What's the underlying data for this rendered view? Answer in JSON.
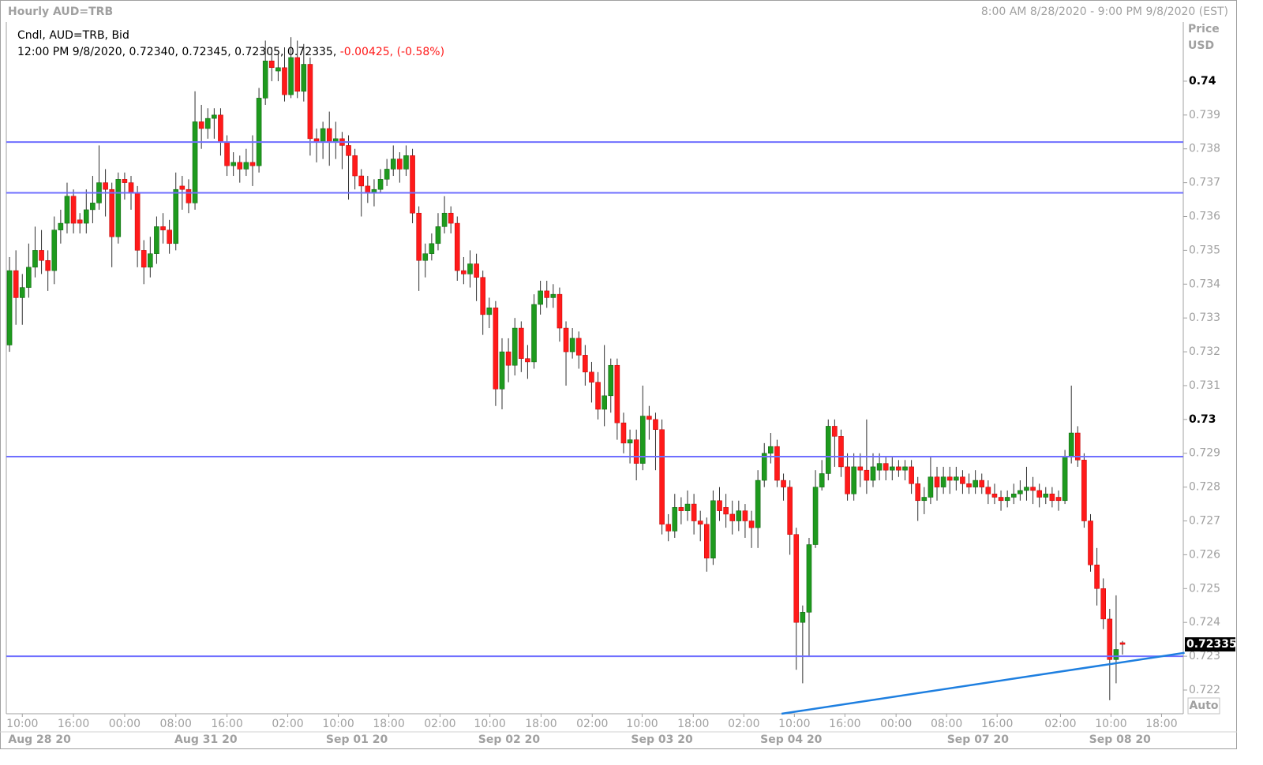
{
  "chart_data": {
    "type": "candlestick",
    "title": "Hourly AUD=TRB",
    "subtitle": "8:00 AM 8/28/2020 - 9:00 PM 9/8/2020 (EST)",
    "legend_title": "Cndl, AUD=TRB, Bid",
    "info_line": "12:00 PM 9/8/2020, 0.72340, 0.72345, 0.72305, 0.72335,",
    "info_change": "-0.00425, (-0.58%)",
    "y_axis_label": [
      "Price",
      "USD"
    ],
    "auto_button": "Auto",
    "up_color": "#1e9a1e",
    "down_color": "#ff1a1a",
    "line_color": "#6f6fff",
    "trend_color": "#1e7fe0",
    "xlim": [
      -0.5,
      183.5
    ],
    "ylim": [
      0.7213,
      0.7424
    ],
    "yticks": [
      0.74,
      0.739,
      0.738,
      0.737,
      0.736,
      0.735,
      0.734,
      0.733,
      0.732,
      0.731,
      0.73,
      0.729,
      0.728,
      0.727,
      0.726,
      0.725,
      0.724,
      0.723,
      0.722
    ],
    "bold_yticks": [
      0.74,
      0.73
    ],
    "xticks": [
      {
        "value": 2,
        "label": "10:00"
      },
      {
        "value": 10,
        "label": "16:00"
      },
      {
        "value": 18,
        "label": "00:00"
      },
      {
        "value": 26,
        "label": "08:00"
      },
      {
        "value": 34,
        "label": "16:00"
      },
      {
        "value": 43.5,
        "label": "02:00"
      },
      {
        "value": 51.4,
        "label": "10:00"
      },
      {
        "value": 59.3,
        "label": "18:00"
      },
      {
        "value": 67.3,
        "label": "02:00"
      },
      {
        "value": 75.1,
        "label": "10:00"
      },
      {
        "value": 83.1,
        "label": "18:00"
      },
      {
        "value": 91.1,
        "label": "02:00"
      },
      {
        "value": 98.9,
        "label": "10:00"
      },
      {
        "value": 106.9,
        "label": "18:00"
      },
      {
        "value": 114.8,
        "label": "02:00"
      },
      {
        "value": 122.7,
        "label": "10:00"
      },
      {
        "value": 130.6,
        "label": "16:00"
      },
      {
        "value": 138.6,
        "label": "00:00"
      },
      {
        "value": 146.5,
        "label": "08:00"
      },
      {
        "value": 154.4,
        "label": "16:00"
      },
      {
        "value": 164.3,
        "label": "02:00"
      },
      {
        "value": 172.2,
        "label": "10:00"
      },
      {
        "value": 180.1,
        "label": "18:00"
      }
    ],
    "date_ticks": [
      {
        "value": 4.7,
        "label": "Aug 28 20"
      },
      {
        "value": 30.7,
        "label": "Aug 31 20"
      },
      {
        "value": 54.3,
        "label": "Sep 01 20"
      },
      {
        "value": 78.1,
        "label": "Sep 02 20"
      },
      {
        "value": 102,
        "label": "Sep 03 20"
      },
      {
        "value": 122.2,
        "label": "Sep 04 20"
      },
      {
        "value": 151.4,
        "label": "Sep 07 20"
      },
      {
        "value": 173.6,
        "label": "Sep 08 20"
      }
    ],
    "hlines": [
      0.7382,
      0.7367,
      0.7289,
      0.723
    ],
    "trendline": {
      "x": [
        120.7,
        183.7
      ],
      "y": [
        0.7213,
        0.7231
      ]
    },
    "ohlc": [
      [
        0.7322,
        0.7348,
        0.732,
        0.7344
      ],
      [
        0.7344,
        0.735,
        0.7328,
        0.7336
      ],
      [
        0.7336,
        0.7343,
        0.7328,
        0.7339
      ],
      [
        0.7339,
        0.7352,
        0.7336,
        0.7345
      ],
      [
        0.7345,
        0.7357,
        0.7342,
        0.735
      ],
      [
        0.735,
        0.7356,
        0.7343,
        0.7347
      ],
      [
        0.7347,
        0.735,
        0.7338,
        0.7344
      ],
      [
        0.7344,
        0.736,
        0.734,
        0.7356
      ],
      [
        0.7356,
        0.7362,
        0.7352,
        0.7358
      ],
      [
        0.7358,
        0.737,
        0.7355,
        0.7366
      ],
      [
        0.7366,
        0.7368,
        0.7355,
        0.7358
      ],
      [
        0.7359,
        0.7361,
        0.7355,
        0.7358
      ],
      [
        0.7358,
        0.7368,
        0.7355,
        0.7362
      ],
      [
        0.7362,
        0.7372,
        0.7358,
        0.7364
      ],
      [
        0.7364,
        0.7381,
        0.7362,
        0.737
      ],
      [
        0.737,
        0.7374,
        0.736,
        0.7368
      ],
      [
        0.7368,
        0.737,
        0.7345,
        0.7354
      ],
      [
        0.7354,
        0.7373,
        0.7352,
        0.7371
      ],
      [
        0.7371,
        0.7373,
        0.7365,
        0.737
      ],
      [
        0.737,
        0.7372,
        0.7362,
        0.7367
      ],
      [
        0.7367,
        0.7369,
        0.7345,
        0.735
      ],
      [
        0.735,
        0.7353,
        0.734,
        0.7345
      ],
      [
        0.7345,
        0.7354,
        0.7342,
        0.7349
      ],
      [
        0.7349,
        0.736,
        0.7346,
        0.7357
      ],
      [
        0.7357,
        0.7361,
        0.7352,
        0.7356
      ],
      [
        0.7356,
        0.7359,
        0.7349,
        0.7352
      ],
      [
        0.7352,
        0.7373,
        0.735,
        0.7368
      ],
      [
        0.7369,
        0.7372,
        0.7362,
        0.7368
      ],
      [
        0.7368,
        0.7371,
        0.7361,
        0.7364
      ],
      [
        0.7364,
        0.7397,
        0.7362,
        0.7388
      ],
      [
        0.7388,
        0.7393,
        0.738,
        0.7386
      ],
      [
        0.7386,
        0.7392,
        0.7383,
        0.7389
      ],
      [
        0.7389,
        0.7392,
        0.7383,
        0.739
      ],
      [
        0.739,
        0.7392,
        0.7378,
        0.7382
      ],
      [
        0.7382,
        0.7384,
        0.7372,
        0.7375
      ],
      [
        0.7375,
        0.7379,
        0.7372,
        0.7376
      ],
      [
        0.7376,
        0.7378,
        0.737,
        0.7374
      ],
      [
        0.7374,
        0.738,
        0.7372,
        0.7376
      ],
      [
        0.7376,
        0.7384,
        0.7369,
        0.7375
      ],
      [
        0.7375,
        0.7398,
        0.7373,
        0.7395
      ],
      [
        0.7395,
        0.7412,
        0.7393,
        0.7406
      ],
      [
        0.7406,
        0.741,
        0.74,
        0.7404
      ],
      [
        0.7403,
        0.7408,
        0.74,
        0.7404
      ],
      [
        0.7404,
        0.741,
        0.7394,
        0.7396
      ],
      [
        0.7396,
        0.7413,
        0.7395,
        0.7407
      ],
      [
        0.7407,
        0.7412,
        0.7395,
        0.7397
      ],
      [
        0.7397,
        0.7411,
        0.7394,
        0.7405
      ],
      [
        0.7405,
        0.7407,
        0.7378,
        0.7383
      ],
      [
        0.7383,
        0.7386,
        0.7376,
        0.7382
      ],
      [
        0.7382,
        0.7388,
        0.7377,
        0.7386
      ],
      [
        0.7386,
        0.7391,
        0.7375,
        0.7382
      ],
      [
        0.7382,
        0.7388,
        0.7377,
        0.7383
      ],
      [
        0.7383,
        0.7385,
        0.7374,
        0.7381
      ],
      [
        0.7381,
        0.7384,
        0.7365,
        0.7378
      ],
      [
        0.7378,
        0.738,
        0.7368,
        0.7372
      ],
      [
        0.7372,
        0.7374,
        0.736,
        0.7369
      ],
      [
        0.7369,
        0.7372,
        0.7364,
        0.7367
      ],
      [
        0.7367,
        0.7371,
        0.7363,
        0.7368
      ],
      [
        0.7368,
        0.7374,
        0.7367,
        0.7371
      ],
      [
        0.7371,
        0.7377,
        0.7369,
        0.7374
      ],
      [
        0.7374,
        0.7381,
        0.7372,
        0.7377
      ],
      [
        0.7377,
        0.7379,
        0.737,
        0.7374
      ],
      [
        0.7374,
        0.7381,
        0.7372,
        0.7378
      ],
      [
        0.7378,
        0.738,
        0.7358,
        0.7361
      ],
      [
        0.7361,
        0.7363,
        0.7338,
        0.7347
      ],
      [
        0.7347,
        0.7352,
        0.7342,
        0.7349
      ],
      [
        0.7349,
        0.7355,
        0.7347,
        0.7352
      ],
      [
        0.7352,
        0.7361,
        0.735,
        0.7357
      ],
      [
        0.7357,
        0.7366,
        0.7355,
        0.7361
      ],
      [
        0.7361,
        0.7363,
        0.7355,
        0.7358
      ],
      [
        0.7358,
        0.736,
        0.7341,
        0.7344
      ],
      [
        0.7344,
        0.7348,
        0.734,
        0.7343
      ],
      [
        0.7343,
        0.735,
        0.7339,
        0.7346
      ],
      [
        0.7346,
        0.7349,
        0.7335,
        0.7342
      ],
      [
        0.7342,
        0.7344,
        0.7325,
        0.7331
      ],
      [
        0.7331,
        0.7336,
        0.7327,
        0.7333
      ],
      [
        0.7333,
        0.7335,
        0.7304,
        0.7309
      ],
      [
        0.7309,
        0.7324,
        0.7303,
        0.732
      ],
      [
        0.732,
        0.7324,
        0.7311,
        0.7316
      ],
      [
        0.7316,
        0.733,
        0.7313,
        0.7327
      ],
      [
        0.7327,
        0.7329,
        0.7314,
        0.7318
      ],
      [
        0.7318,
        0.7322,
        0.7312,
        0.7317
      ],
      [
        0.7317,
        0.7337,
        0.7315,
        0.7334
      ],
      [
        0.7334,
        0.7341,
        0.7331,
        0.7338
      ],
      [
        0.7338,
        0.7341,
        0.7333,
        0.7336
      ],
      [
        0.7336,
        0.734,
        0.7333,
        0.7337
      ],
      [
        0.7337,
        0.7339,
        0.7323,
        0.7327
      ],
      [
        0.7327,
        0.7329,
        0.731,
        0.732
      ],
      [
        0.732,
        0.7327,
        0.7318,
        0.7324
      ],
      [
        0.7324,
        0.7326,
        0.7315,
        0.7319
      ],
      [
        0.7319,
        0.7322,
        0.731,
        0.7314
      ],
      [
        0.7314,
        0.7317,
        0.7305,
        0.7311
      ],
      [
        0.7311,
        0.7314,
        0.73,
        0.7303
      ],
      [
        0.7303,
        0.7322,
        0.7298,
        0.7307
      ],
      [
        0.7307,
        0.7318,
        0.7302,
        0.7316
      ],
      [
        0.7316,
        0.7318,
        0.7294,
        0.7299
      ],
      [
        0.7299,
        0.7302,
        0.729,
        0.7293
      ],
      [
        0.7293,
        0.7297,
        0.7287,
        0.7294
      ],
      [
        0.7294,
        0.7297,
        0.7282,
        0.7287
      ],
      [
        0.7287,
        0.731,
        0.7285,
        0.7301
      ],
      [
        0.7301,
        0.7304,
        0.7294,
        0.73
      ],
      [
        0.73,
        0.7302,
        0.7285,
        0.7297
      ],
      [
        0.7297,
        0.73,
        0.7266,
        0.7269
      ],
      [
        0.7269,
        0.7272,
        0.7264,
        0.7267
      ],
      [
        0.7267,
        0.7278,
        0.7265,
        0.7274
      ],
      [
        0.7274,
        0.7277,
        0.7269,
        0.7273
      ],
      [
        0.7273,
        0.7279,
        0.727,
        0.7275
      ],
      [
        0.7275,
        0.7278,
        0.7266,
        0.727
      ],
      [
        0.727,
        0.7273,
        0.7264,
        0.7269
      ],
      [
        0.7269,
        0.7271,
        0.7255,
        0.7259
      ],
      [
        0.7259,
        0.7279,
        0.7257,
        0.7276
      ],
      [
        0.7276,
        0.728,
        0.727,
        0.7273
      ],
      [
        0.7274,
        0.7278,
        0.7268,
        0.7272
      ],
      [
        0.7272,
        0.7276,
        0.7266,
        0.727
      ],
      [
        0.727,
        0.7276,
        0.7267,
        0.7273
      ],
      [
        0.7273,
        0.7275,
        0.7265,
        0.727
      ],
      [
        0.727,
        0.7273,
        0.7262,
        0.7268
      ],
      [
        0.7268,
        0.7285,
        0.7262,
        0.7282
      ],
      [
        0.7282,
        0.7293,
        0.728,
        0.729
      ],
      [
        0.729,
        0.7296,
        0.7287,
        0.7292
      ],
      [
        0.7292,
        0.7294,
        0.728,
        0.7282
      ],
      [
        0.7282,
        0.7284,
        0.7276,
        0.728
      ],
      [
        0.728,
        0.7282,
        0.726,
        0.7266
      ],
      [
        0.7266,
        0.7268,
        0.7226,
        0.724
      ],
      [
        0.724,
        0.7245,
        0.7222,
        0.7243
      ],
      [
        0.7243,
        0.7265,
        0.723,
        0.7263
      ],
      [
        0.7263,
        0.7285,
        0.7262,
        0.728
      ],
      [
        0.728,
        0.7288,
        0.7279,
        0.7284
      ],
      [
        0.7284,
        0.73,
        0.7282,
        0.7298
      ],
      [
        0.7298,
        0.73,
        0.7286,
        0.7295
      ],
      [
        0.7295,
        0.7297,
        0.7283,
        0.7286
      ],
      [
        0.7286,
        0.729,
        0.7276,
        0.7278
      ],
      [
        0.7278,
        0.729,
        0.7276,
        0.7286
      ],
      [
        0.7286,
        0.729,
        0.728,
        0.7285
      ],
      [
        0.7285,
        0.73,
        0.7278,
        0.7282
      ],
      [
        0.7282,
        0.729,
        0.728,
        0.7286
      ],
      [
        0.7285,
        0.729,
        0.7282,
        0.7287
      ],
      [
        0.7287,
        0.7289,
        0.7282,
        0.7285
      ],
      [
        0.7285,
        0.7289,
        0.7282,
        0.7286
      ],
      [
        0.7286,
        0.7288,
        0.7283,
        0.7285
      ],
      [
        0.7285,
        0.7288,
        0.7282,
        0.7286
      ],
      [
        0.7286,
        0.7288,
        0.7278,
        0.7281
      ],
      [
        0.7281,
        0.7283,
        0.727,
        0.7276
      ],
      [
        0.7276,
        0.728,
        0.7272,
        0.7277
      ],
      [
        0.7277,
        0.7289,
        0.7275,
        0.7283
      ],
      [
        0.7283,
        0.7286,
        0.7276,
        0.728
      ],
      [
        0.728,
        0.7286,
        0.7278,
        0.7283
      ],
      [
        0.7283,
        0.7286,
        0.7278,
        0.7282
      ],
      [
        0.7282,
        0.7286,
        0.7279,
        0.7283
      ],
      [
        0.7283,
        0.7285,
        0.7278,
        0.7281
      ],
      [
        0.7281,
        0.7284,
        0.7278,
        0.728
      ],
      [
        0.728,
        0.7285,
        0.7278,
        0.7282
      ],
      [
        0.7282,
        0.7284,
        0.7278,
        0.728
      ],
      [
        0.728,
        0.7282,
        0.7275,
        0.7278
      ],
      [
        0.7278,
        0.7281,
        0.7275,
        0.7277
      ],
      [
        0.7277,
        0.7279,
        0.7273,
        0.7276
      ],
      [
        0.7276,
        0.7279,
        0.7274,
        0.7277
      ],
      [
        0.7277,
        0.7281,
        0.7275,
        0.7278
      ],
      [
        0.7278,
        0.7282,
        0.7276,
        0.7279
      ],
      [
        0.7279,
        0.7286,
        0.7276,
        0.728
      ],
      [
        0.728,
        0.7283,
        0.7275,
        0.7279
      ],
      [
        0.7279,
        0.7281,
        0.7274,
        0.7277
      ],
      [
        0.7277,
        0.728,
        0.7275,
        0.7278
      ],
      [
        0.7278,
        0.728,
        0.7274,
        0.7276
      ],
      [
        0.7277,
        0.7279,
        0.7273,
        0.7276
      ],
      [
        0.7276,
        0.7291,
        0.7275,
        0.7289
      ],
      [
        0.7289,
        0.731,
        0.7287,
        0.7296
      ],
      [
        0.7296,
        0.7298,
        0.7286,
        0.7288
      ],
      [
        0.7288,
        0.729,
        0.7268,
        0.727
      ],
      [
        0.727,
        0.7272,
        0.7255,
        0.7257
      ],
      [
        0.7257,
        0.7262,
        0.7245,
        0.725
      ],
      [
        0.725,
        0.7253,
        0.7238,
        0.7241
      ],
      [
        0.7241,
        0.7244,
        0.7217,
        0.7229
      ],
      [
        0.7229,
        0.7248,
        0.7222,
        0.7232
      ],
      [
        0.7234,
        0.72345,
        0.72305,
        0.72335
      ]
    ]
  }
}
